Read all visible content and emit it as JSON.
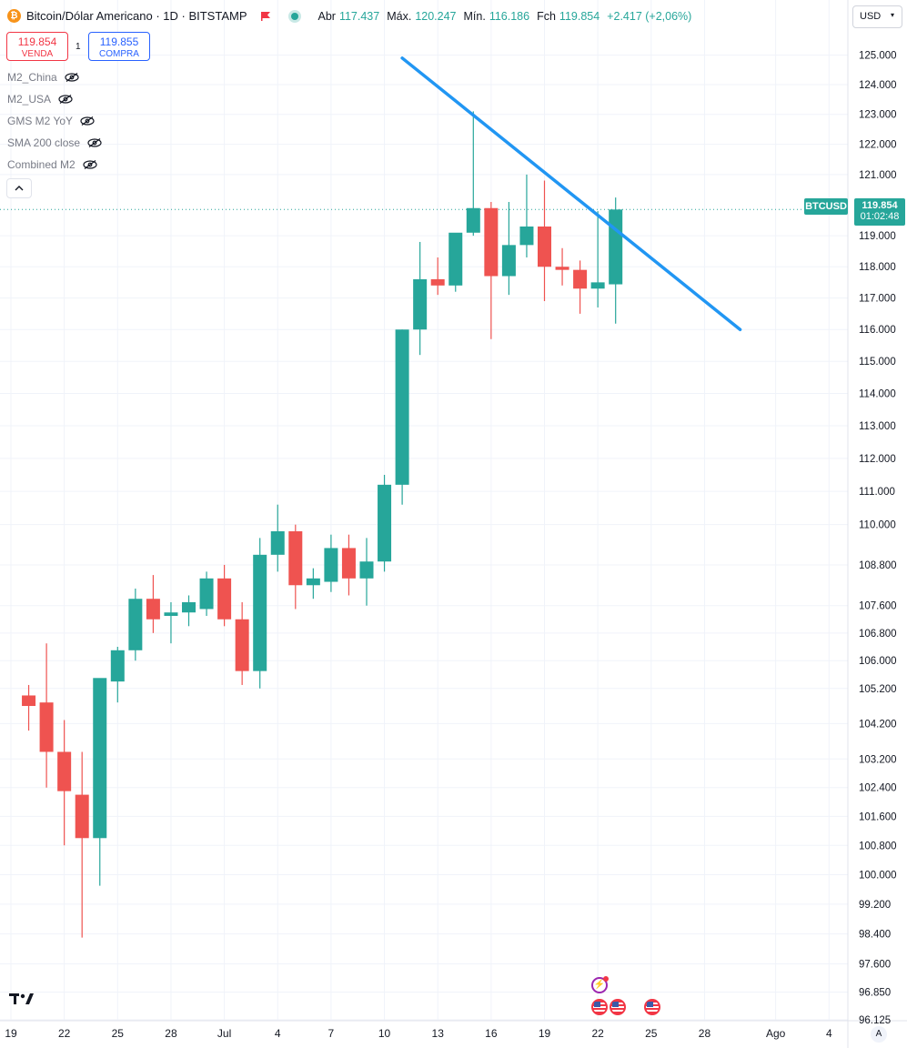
{
  "header": {
    "symbol_title": "Bitcoin/Dólar Americano · 1D · BITSTAMP",
    "logo_letter": "₿",
    "ohlc": {
      "open_label": "Abr",
      "open": "117.437",
      "high_label": "Máx.",
      "high": "120.247",
      "low_label": "Mín.",
      "low": "116.186",
      "close_label": "Fch",
      "close": "119.854",
      "change": "+2.417 (+2,06%)"
    }
  },
  "trade": {
    "sell_price": "119.854",
    "sell_label": "VENDA",
    "spread": "1",
    "buy_price": "119.855",
    "buy_label": "COMPRA"
  },
  "indicators": [
    {
      "name": "M2_China"
    },
    {
      "name": "M2_USA"
    },
    {
      "name": "GMS M2 YoY"
    },
    {
      "name": "SMA 200 close"
    },
    {
      "name": "Combined M2"
    }
  ],
  "collapse_icon": "chevron-up-icon",
  "currency": "USD",
  "price_tag": {
    "symbol": "BTCUSD",
    "price": "119.854",
    "countdown": "01:02:48"
  },
  "auto_scale_label": "A",
  "colors": {
    "up": "#26a69a",
    "down": "#ef5350",
    "trendline": "#2196f3",
    "grid": "#f0f3fa",
    "axis_text": "#131722"
  },
  "events": [
    {
      "icon": "bolt-event-icon"
    },
    {
      "icon": "us-flag-event-icon"
    },
    {
      "icon": "us-flag-event-icon"
    },
    {
      "icon": "us-flag-event-icon"
    }
  ],
  "chart_data": {
    "type": "candlestick",
    "title": "Bitcoin/Dólar Americano · 1D · BITSTAMP",
    "y_scale": "log",
    "ylim": [
      96125,
      126200
    ],
    "y_ticks": [
      {
        "v": 125000,
        "label": "125.000"
      },
      {
        "v": 124000,
        "label": "124.000"
      },
      {
        "v": 123000,
        "label": "123.000"
      },
      {
        "v": 122000,
        "label": "122.000"
      },
      {
        "v": 121000,
        "label": "121.000"
      },
      {
        "v": 119000,
        "label": "119.000"
      },
      {
        "v": 118000,
        "label": "118.000"
      },
      {
        "v": 117000,
        "label": "117.000"
      },
      {
        "v": 116000,
        "label": "116.000"
      },
      {
        "v": 115000,
        "label": "115.000"
      },
      {
        "v": 114000,
        "label": "114.000"
      },
      {
        "v": 113000,
        "label": "113.000"
      },
      {
        "v": 112000,
        "label": "112.000"
      },
      {
        "v": 111000,
        "label": "111.000"
      },
      {
        "v": 110000,
        "label": "110.000"
      },
      {
        "v": 108800,
        "label": "108.800"
      },
      {
        "v": 107600,
        "label": "107.600"
      },
      {
        "v": 106800,
        "label": "106.800"
      },
      {
        "v": 106000,
        "label": "106.000"
      },
      {
        "v": 105200,
        "label": "105.200"
      },
      {
        "v": 104200,
        "label": "104.200"
      },
      {
        "v": 103200,
        "label": "103.200"
      },
      {
        "v": 102400,
        "label": "102.400"
      },
      {
        "v": 101600,
        "label": "101.600"
      },
      {
        "v": 100800,
        "label": "100.800"
      },
      {
        "v": 100000,
        "label": "100.000"
      },
      {
        "v": 99200,
        "label": "99.200"
      },
      {
        "v": 98400,
        "label": "98.400"
      },
      {
        "v": 97600,
        "label": "97.600"
      },
      {
        "v": 96850,
        "label": "96.850"
      },
      {
        "v": 96125,
        "label": "96.125"
      }
    ],
    "x_ticks": [
      {
        "i": 0,
        "label": "19"
      },
      {
        "i": 3,
        "label": "22"
      },
      {
        "i": 6,
        "label": "25"
      },
      {
        "i": 9,
        "label": "28"
      },
      {
        "i": 12,
        "label": "Jul"
      },
      {
        "i": 15,
        "label": "4"
      },
      {
        "i": 18,
        "label": "7"
      },
      {
        "i": 21,
        "label": "10"
      },
      {
        "i": 24,
        "label": "13"
      },
      {
        "i": 27,
        "label": "16"
      },
      {
        "i": 30,
        "label": "19"
      },
      {
        "i": 33,
        "label": "22"
      },
      {
        "i": 36,
        "label": "25"
      },
      {
        "i": 39,
        "label": "28"
      },
      {
        "i": 43,
        "label": "Ago"
      },
      {
        "i": 46,
        "label": "4"
      }
    ],
    "candles": [
      {
        "date": "Jun 18",
        "o": 105000,
        "h": 105300,
        "l": 104000,
        "c": 104700
      },
      {
        "date": "Jun 19",
        "o": 104800,
        "h": 106500,
        "l": 102400,
        "c": 103400
      },
      {
        "date": "Jun 20",
        "o": 103400,
        "h": 104300,
        "l": 100800,
        "c": 102300
      },
      {
        "date": "Jun 21",
        "o": 102200,
        "h": 103400,
        "l": 98300,
        "c": 101000
      },
      {
        "date": "Jun 22",
        "o": 101000,
        "h": 105300,
        "l": 99700,
        "c": 105500
      },
      {
        "date": "Jun 23",
        "o": 105400,
        "h": 106400,
        "l": 104800,
        "c": 106300
      },
      {
        "date": "Jun 24",
        "o": 106300,
        "h": 108100,
        "l": 106000,
        "c": 107800
      },
      {
        "date": "Jun 25",
        "o": 107800,
        "h": 108500,
        "l": 106800,
        "c": 107200
      },
      {
        "date": "Jun 26",
        "o": 107300,
        "h": 107700,
        "l": 106500,
        "c": 107400
      },
      {
        "date": "Jun 27",
        "o": 107400,
        "h": 107900,
        "l": 107000,
        "c": 107700
      },
      {
        "date": "Jun 28",
        "o": 107500,
        "h": 108600,
        "l": 107300,
        "c": 108400
      },
      {
        "date": "Jun 29",
        "o": 108400,
        "h": 108800,
        "l": 107000,
        "c": 107200
      },
      {
        "date": "Jun 30",
        "o": 107200,
        "h": 107700,
        "l": 105300,
        "c": 105700
      },
      {
        "date": "Jul 1",
        "o": 105700,
        "h": 109600,
        "l": 105200,
        "c": 109100
      },
      {
        "date": "Jul 2",
        "o": 109100,
        "h": 110600,
        "l": 108600,
        "c": 109800
      },
      {
        "date": "Jul 3",
        "o": 109800,
        "h": 110000,
        "l": 107500,
        "c": 108200
      },
      {
        "date": "Jul 4",
        "o": 108200,
        "h": 108700,
        "l": 107800,
        "c": 108400
      },
      {
        "date": "Jul 5",
        "o": 108300,
        "h": 109700,
        "l": 108000,
        "c": 109300
      },
      {
        "date": "Jul 6",
        "o": 109300,
        "h": 109700,
        "l": 107900,
        "c": 108400
      },
      {
        "date": "Jul 7",
        "o": 108400,
        "h": 109600,
        "l": 107600,
        "c": 108900
      },
      {
        "date": "Jul 8",
        "o": 108900,
        "h": 111500,
        "l": 108600,
        "c": 111200
      },
      {
        "date": "Jul 9",
        "o": 111200,
        "h": 116000,
        "l": 110600,
        "c": 116000
      },
      {
        "date": "Jul 10",
        "o": 116000,
        "h": 118800,
        "l": 115200,
        "c": 117600
      },
      {
        "date": "Jul 11",
        "o": 117600,
        "h": 118300,
        "l": 117100,
        "c": 117400
      },
      {
        "date": "Jul 12",
        "o": 117400,
        "h": 119000,
        "l": 117200,
        "c": 119100
      },
      {
        "date": "Jul 13",
        "o": 119100,
        "h": 123100,
        "l": 119000,
        "c": 119900
      },
      {
        "date": "Jul 14",
        "o": 119900,
        "h": 120100,
        "l": 115700,
        "c": 117700
      },
      {
        "date": "Jul 15",
        "o": 117700,
        "h": 120100,
        "l": 117100,
        "c": 118700
      },
      {
        "date": "Jul 16",
        "o": 118700,
        "h": 121000,
        "l": 118300,
        "c": 119300
      },
      {
        "date": "Jul 17",
        "o": 119300,
        "h": 120800,
        "l": 116900,
        "c": 118000
      },
      {
        "date": "Jul 18",
        "o": 118000,
        "h": 118600,
        "l": 117400,
        "c": 117900
      },
      {
        "date": "Jul 19",
        "o": 117900,
        "h": 118200,
        "l": 116500,
        "c": 117300
      },
      {
        "date": "Jul 20",
        "o": 117300,
        "h": 119800,
        "l": 116700,
        "c": 117500
      },
      {
        "date": "Jul 21",
        "o": 117437,
        "h": 120247,
        "l": 116186,
        "c": 119854
      }
    ],
    "last_price": 119854,
    "trendline": [
      {
        "date": "Jul 9",
        "v": 124900
      },
      {
        "date": "Jul 28",
        "v": 116000
      }
    ]
  }
}
